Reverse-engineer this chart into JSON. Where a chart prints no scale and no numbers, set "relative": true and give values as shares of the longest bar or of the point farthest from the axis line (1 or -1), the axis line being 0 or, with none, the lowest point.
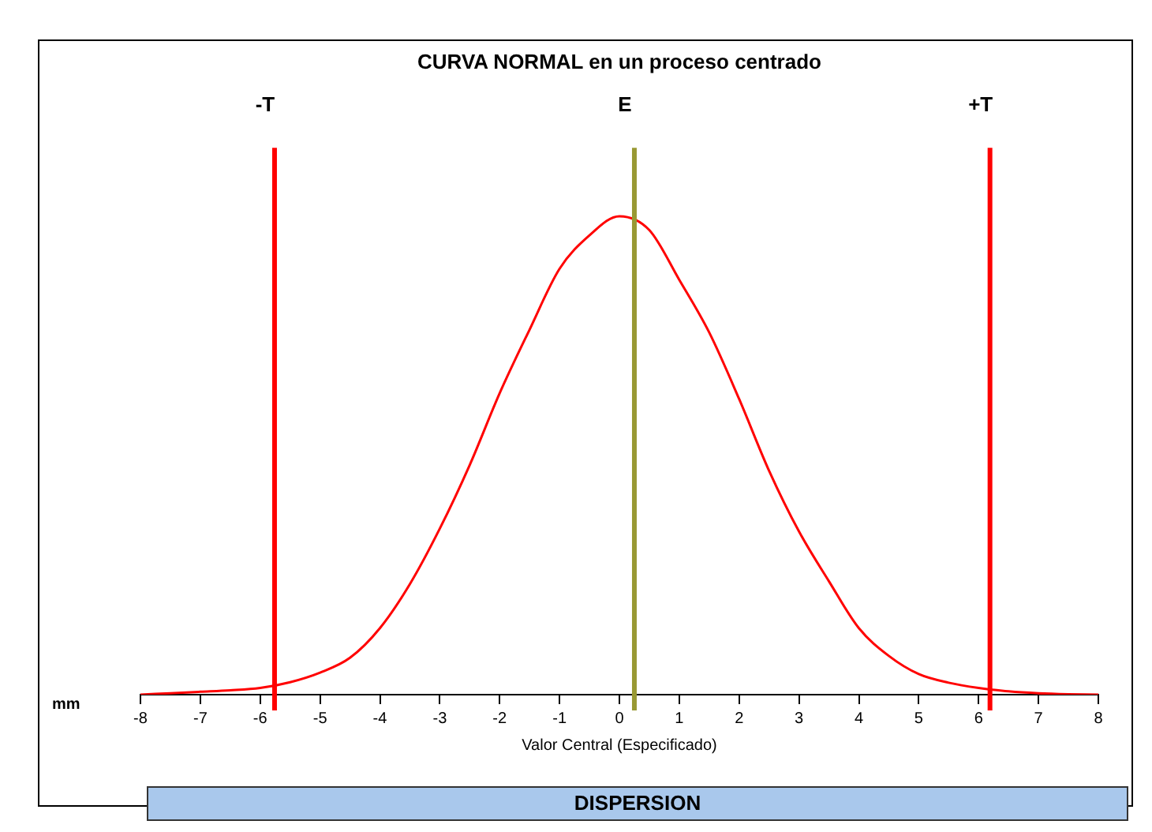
{
  "chart_data": {
    "type": "line",
    "title": "CURVA NORMAL en un proceso centrado",
    "xlabel": "Valor Central (Especificado)",
    "ylabel": "mm",
    "relative": true,
    "x": [
      -8,
      -7.5,
      -7,
      -6.5,
      -6,
      -5.5,
      -5,
      -4.5,
      -4,
      -3.5,
      -3,
      -2.5,
      -2,
      -1.5,
      -1,
      -0.5,
      0,
      0.5,
      1,
      1.5,
      2,
      2.5,
      3,
      3.5,
      4,
      4.5,
      5,
      5.5,
      6,
      6.5,
      7,
      7.5,
      8
    ],
    "series": [
      {
        "color": "#ff0000",
        "values": [
          0,
          0.003,
          0.006,
          0.009,
          0.014,
          0.026,
          0.046,
          0.077,
          0.139,
          0.231,
          0.347,
          0.48,
          0.63,
          0.763,
          0.89,
          0.96,
          1,
          0.971,
          0.867,
          0.757,
          0.618,
          0.468,
          0.341,
          0.237,
          0.139,
          0.081,
          0.043,
          0.025,
          0.014,
          0.007,
          0.003,
          0.001,
          0
        ]
      }
    ],
    "xlim": [
      -8,
      8
    ],
    "xticks": [
      -8,
      -7,
      -6,
      -5,
      -4,
      -3,
      -2,
      -1,
      0,
      1,
      2,
      3,
      4,
      5,
      6,
      7,
      8
    ],
    "ref_lines": [
      {
        "axis": "x",
        "value": -5.76,
        "label": "-T",
        "color": "#ff0000"
      },
      {
        "axis": "x",
        "value": 0.25,
        "label": "E",
        "color": "#999933"
      },
      {
        "axis": "x",
        "value": 6.19,
        "label": "+T",
        "color": "#ff0000"
      }
    ],
    "annotations": [
      "DISPERSION"
    ],
    "grid": false,
    "legend": false,
    "marker": "none",
    "line_style": "solid"
  }
}
